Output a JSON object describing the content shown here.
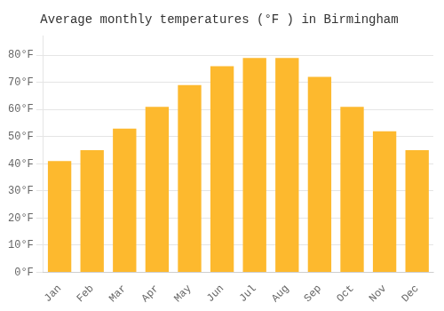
{
  "chart_data": {
    "type": "bar",
    "title": "Average monthly temperatures (°F ) in Birmingham",
    "categories": [
      "Jan",
      "Feb",
      "Mar",
      "Apr",
      "May",
      "Jun",
      "Jul",
      "Aug",
      "Sep",
      "Oct",
      "Nov",
      "Dec"
    ],
    "values": [
      41,
      45,
      53,
      61,
      69,
      76,
      79,
      79,
      72,
      61,
      52,
      45
    ],
    "color": "#FDB92E",
    "ylim": [
      0,
      87
    ],
    "yticks": [
      {
        "value": 0,
        "label": "0°F"
      },
      {
        "value": 10,
        "label": "10°F"
      },
      {
        "value": 20,
        "label": "20°F"
      },
      {
        "value": 30,
        "label": "30°F"
      },
      {
        "value": 40,
        "label": "40°F"
      },
      {
        "value": 50,
        "label": "50°F"
      },
      {
        "value": 60,
        "label": "60°F"
      },
      {
        "value": 70,
        "label": "70°F"
      },
      {
        "value": 80,
        "label": "80°F"
      }
    ],
    "grid": true
  }
}
